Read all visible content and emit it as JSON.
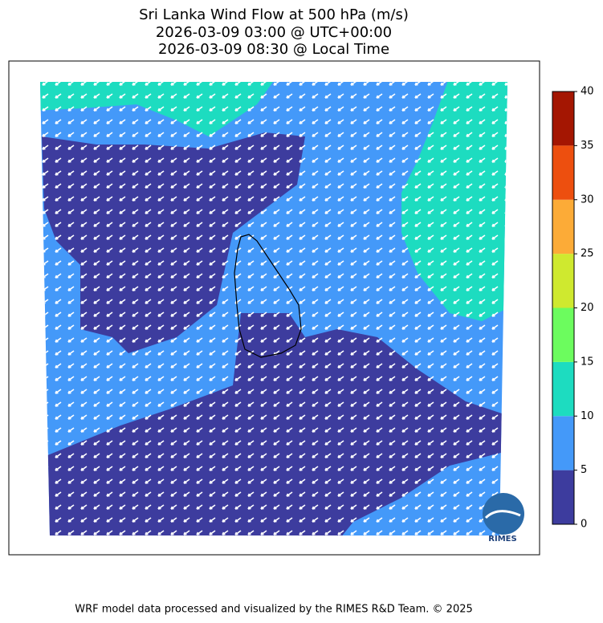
{
  "title": [
    "Sri Lanka Wind Flow at 500 hPa (m/s)",
    "2026-03-09 03:00 @ UTC+00:00",
    "2026-03-09 08:30 @ Local Time"
  ],
  "colorbar": {
    "ticks": [
      0,
      5,
      10,
      15,
      20,
      25,
      30,
      35,
      40
    ],
    "colors": [
      "#3d3c9e",
      "#4499f9",
      "#1ddcc0",
      "#6cfc5e",
      "#cfe92f",
      "#fcab37",
      "#ed4f0f",
      "#a41602"
    ]
  },
  "logo": "RIMES",
  "footer": "WRF model data processed and visualized by the RIMES R&D Team. © 2025"
}
